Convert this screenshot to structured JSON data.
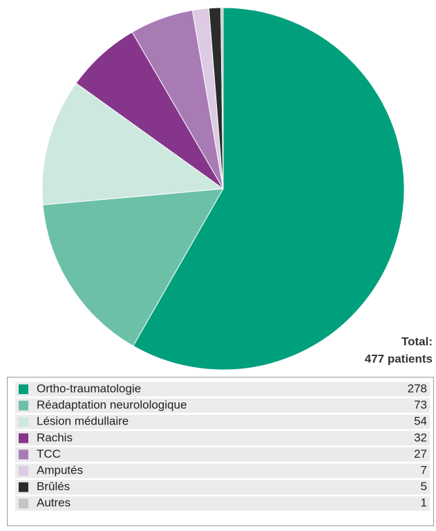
{
  "chart_data": {
    "type": "pie",
    "categories": [
      "Ortho-traumatologie",
      "Réadaptation neurolologique",
      "Lésion médullaire",
      "Rachis",
      "TCC",
      "Amputés",
      "Brûlés",
      "Autres"
    ],
    "values": [
      278,
      73,
      54,
      32,
      27,
      7,
      5,
      1
    ],
    "colors": [
      "#00a07c",
      "#6cc0a8",
      "#cde8df",
      "#85358a",
      "#a97bb5",
      "#dccbe3",
      "#2b2b2b",
      "#c4c4c4"
    ],
    "total": {
      "label": "Total:",
      "value": "477 patients"
    }
  }
}
